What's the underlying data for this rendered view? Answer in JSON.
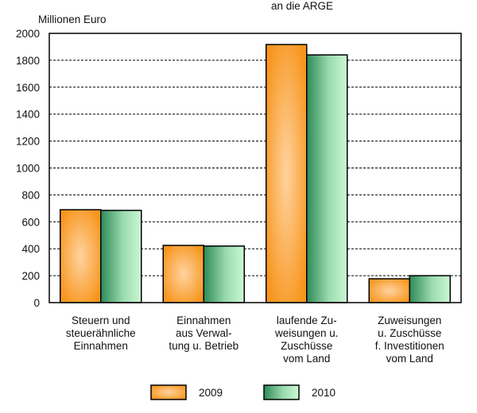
{
  "chart_data": {
    "type": "bar",
    "title": "an die ARGE",
    "ylabel": "Millionen Euro",
    "xlabel": "",
    "ylim": [
      0,
      2000
    ],
    "yticks": [
      0,
      200,
      400,
      600,
      800,
      1000,
      1200,
      1400,
      1600,
      1800,
      2000
    ],
    "grid": true,
    "legend_position": "bottom",
    "categories": [
      [
        "Steuern und",
        "steuerähnliche",
        "Einnahmen"
      ],
      [
        "Einnahmen",
        "aus Verwal-",
        "tung u. Betrieb"
      ],
      [
        "laufende Zu-",
        "weisungen u.",
        "Zuschüsse",
        "vom Land"
      ],
      [
        "Zuweisungen",
        "u. Zuschüsse",
        "f. Investitionen",
        "vom Land"
      ]
    ],
    "series": [
      {
        "name": "2009",
        "values": [
          690,
          425,
          1917,
          177
        ],
        "color": "#F7A030"
      },
      {
        "name": "2010",
        "values": [
          685,
          420,
          1840,
          200
        ],
        "color": "#3E9A66"
      }
    ]
  }
}
